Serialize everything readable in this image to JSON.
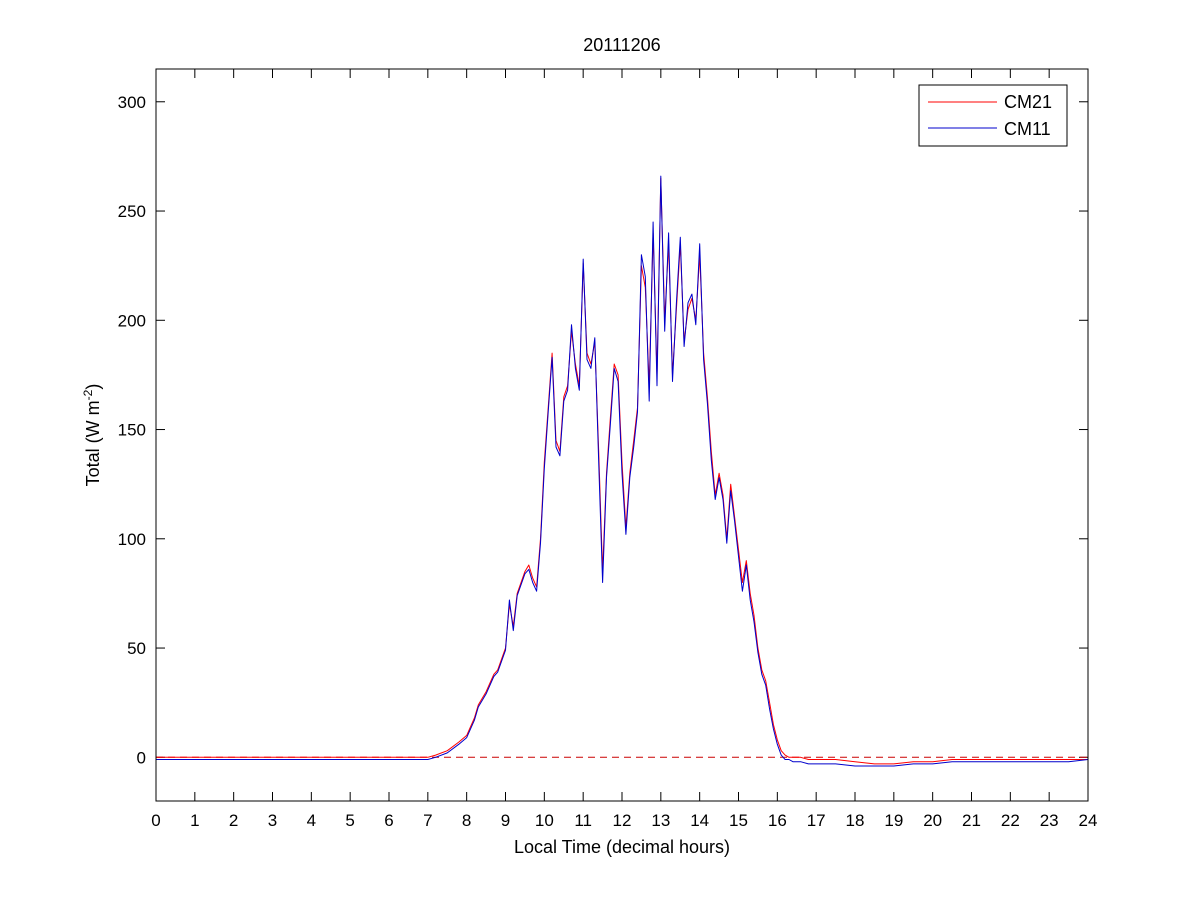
{
  "chart_data": {
    "type": "line",
    "title": "20111206",
    "xlabel": "Local Time (decimal hours)",
    "ylabel_main": "Total (W m",
    "ylabel_sup": "-2",
    "ylabel_close": ")",
    "xlim": [
      0,
      24
    ],
    "ylim": [
      -20,
      315
    ],
    "xticks": [
      0,
      1,
      2,
      3,
      4,
      5,
      6,
      7,
      8,
      9,
      10,
      11,
      12,
      13,
      14,
      15,
      16,
      17,
      18,
      19,
      20,
      21,
      22,
      23,
      24
    ],
    "yticks": [
      0,
      50,
      100,
      150,
      200,
      250,
      300
    ],
    "grid": false,
    "legend_position": "top-right",
    "reference_line": {
      "y": 0,
      "color": "#cc0000",
      "style": "dashed"
    },
    "series": [
      {
        "name": "CM21",
        "color": "#ff0000",
        "x": [
          0,
          1,
          2,
          3,
          4,
          5,
          6,
          7,
          7.2,
          7.5,
          7.8,
          8,
          8.2,
          8.3,
          8.5,
          8.7,
          8.8,
          9,
          9.1,
          9.2,
          9.3,
          9.5,
          9.6,
          9.7,
          9.8,
          9.9,
          10,
          10.1,
          10.2,
          10.3,
          10.4,
          10.5,
          10.6,
          10.7,
          10.8,
          10.9,
          11,
          11.1,
          11.2,
          11.3,
          11.4,
          11.5,
          11.6,
          11.7,
          11.8,
          11.9,
          12,
          12.1,
          12.2,
          12.3,
          12.4,
          12.5,
          12.6,
          12.7,
          12.8,
          12.9,
          13,
          13.1,
          13.2,
          13.3,
          13.4,
          13.5,
          13.6,
          13.7,
          13.8,
          13.9,
          14,
          14.1,
          14.2,
          14.3,
          14.4,
          14.5,
          14.6,
          14.7,
          14.8,
          14.9,
          15,
          15.1,
          15.2,
          15.3,
          15.4,
          15.5,
          15.6,
          15.7,
          15.8,
          15.9,
          16,
          16.1,
          16.2,
          16.3,
          16.4,
          16.5,
          16.6,
          16.8,
          17,
          17.5,
          18,
          18.5,
          19,
          19.5,
          20,
          20.5,
          21,
          21.5,
          22,
          22.5,
          23,
          23.5,
          24
        ],
        "y": [
          0,
          0,
          0,
          0,
          0,
          0,
          0,
          0,
          1,
          3,
          7,
          10,
          18,
          24,
          30,
          38,
          40,
          50,
          70,
          60,
          75,
          85,
          88,
          82,
          78,
          100,
          135,
          160,
          185,
          145,
          140,
          165,
          170,
          195,
          180,
          170,
          226,
          185,
          180,
          190,
          140,
          85,
          130,
          155,
          180,
          175,
          135,
          105,
          130,
          145,
          160,
          225,
          215,
          170,
          240,
          175,
          265,
          200,
          235,
          175,
          205,
          235,
          190,
          205,
          210,
          200,
          230,
          185,
          165,
          140,
          120,
          130,
          120,
          100,
          125,
          110,
          95,
          80,
          90,
          75,
          65,
          50,
          40,
          35,
          25,
          15,
          8,
          3,
          1,
          0,
          0,
          0,
          0,
          -1,
          -1,
          -1,
          -2,
          -3,
          -3,
          -2,
          -2,
          -1,
          -1,
          -1,
          -1,
          -1,
          -1,
          -1,
          -1
        ]
      },
      {
        "name": "CM11",
        "color": "#0000cc",
        "x": [
          0,
          1,
          2,
          3,
          4,
          5,
          6,
          7,
          7.2,
          7.5,
          7.8,
          8,
          8.2,
          8.3,
          8.5,
          8.7,
          8.8,
          9,
          9.1,
          9.2,
          9.3,
          9.5,
          9.6,
          9.7,
          9.8,
          9.9,
          10,
          10.1,
          10.2,
          10.3,
          10.4,
          10.5,
          10.6,
          10.7,
          10.8,
          10.9,
          11,
          11.1,
          11.2,
          11.3,
          11.4,
          11.5,
          11.6,
          11.7,
          11.8,
          11.9,
          12,
          12.1,
          12.2,
          12.3,
          12.4,
          12.5,
          12.6,
          12.7,
          12.8,
          12.9,
          13,
          13.1,
          13.2,
          13.3,
          13.4,
          13.5,
          13.6,
          13.7,
          13.8,
          13.9,
          14,
          14.1,
          14.2,
          14.3,
          14.4,
          14.5,
          14.6,
          14.7,
          14.8,
          14.9,
          15,
          15.1,
          15.2,
          15.3,
          15.4,
          15.5,
          15.6,
          15.7,
          15.8,
          15.9,
          16,
          16.1,
          16.2,
          16.3,
          16.4,
          16.5,
          16.6,
          16.8,
          17,
          17.5,
          18,
          18.5,
          19,
          19.5,
          20,
          20.5,
          21,
          21.5,
          22,
          22.5,
          23,
          23.5,
          24
        ],
        "y": [
          -1,
          -1,
          -1,
          -1,
          -1,
          -1,
          -1,
          -1,
          0,
          2,
          6,
          9,
          17,
          23,
          29,
          37,
          39,
          49,
          72,
          58,
          74,
          84,
          86,
          80,
          76,
          98,
          132,
          158,
          183,
          142,
          138,
          163,
          168,
          198,
          178,
          168,
          228,
          182,
          178,
          192,
          135,
          80,
          128,
          152,
          178,
          172,
          130,
          102,
          128,
          142,
          158,
          230,
          220,
          163,
          245,
          170,
          266,
          195,
          240,
          172,
          208,
          238,
          188,
          208,
          212,
          198,
          235,
          182,
          162,
          136,
          118,
          128,
          118,
          98,
          122,
          108,
          92,
          76,
          88,
          72,
          62,
          48,
          38,
          33,
          22,
          13,
          6,
          1,
          -1,
          -1,
          -2,
          -2,
          -2,
          -3,
          -3,
          -3,
          -4,
          -4,
          -4,
          -3,
          -3,
          -2,
          -2,
          -2,
          -2,
          -2,
          -2,
          -2,
          -1
        ]
      }
    ]
  }
}
